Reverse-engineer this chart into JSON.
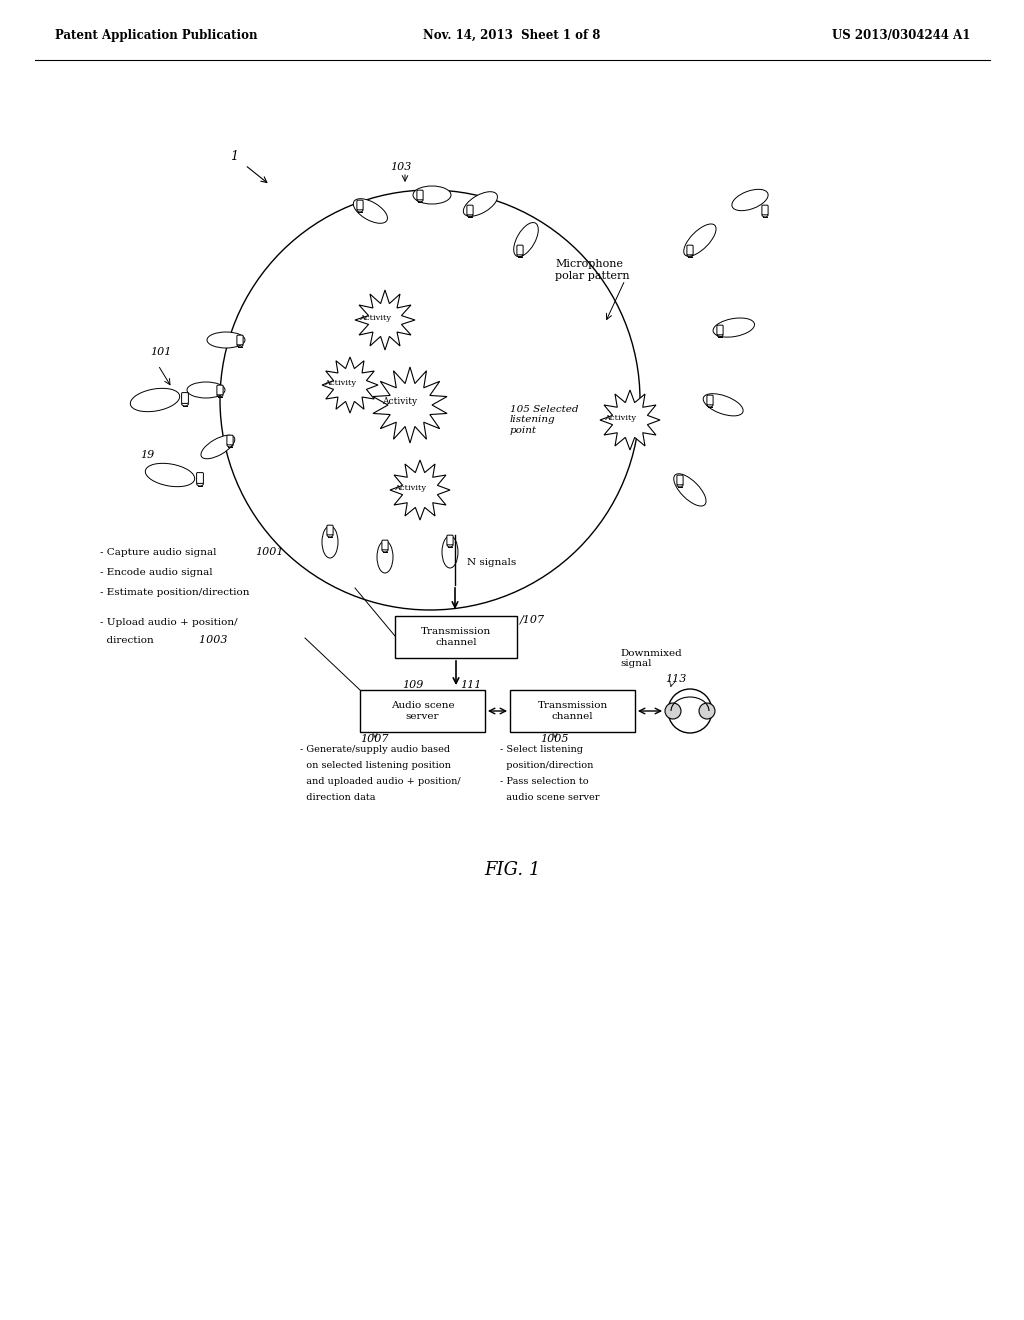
{
  "bg_color": "#ffffff",
  "header_left": "Patent Application Publication",
  "header_mid": "Nov. 14, 2013  Sheet 1 of 8",
  "header_right": "US 2013/0304244 A1",
  "fig_label": "FIG. 1",
  "ref_1": "1",
  "ref_19": "19",
  "ref_101": "101",
  "ref_103": "103",
  "ref_105": "105 Selected\nlistening\npoint",
  "ref_107": "107",
  "ref_109": "109",
  "ref_111": "111",
  "ref_113": "113",
  "ref_1001": "1001",
  "ref_1003": "1003",
  "ref_1005": "1005",
  "ref_1007": "1007",
  "label_mic_polar": "Microphone\npolar pattern",
  "label_activity": "Activity",
  "label_transmission_channel_top": "Transmission\nchannel",
  "label_audio_scene": "Audio scene\nserver",
  "label_transmission_channel_bot": "Transmission\nchannel",
  "label_downmixed": "Downmixed\nsignal",
  "label_n_signals": "N signals",
  "text_left_1": "- Capture audio signal",
  "text_left_2": "- Encode audio signal",
  "text_left_3": "- Estimate position/direction",
  "text_left_4": "- Upload audio + position/\n  direction",
  "text_bottom_left": "- Generate/supply audio based\n  on selected listening position\n  and uploaded audio + position/\n  direction data",
  "text_bottom_right": "- Select listening\n  position/direction\n- Pass selection to\n  audio scene server"
}
